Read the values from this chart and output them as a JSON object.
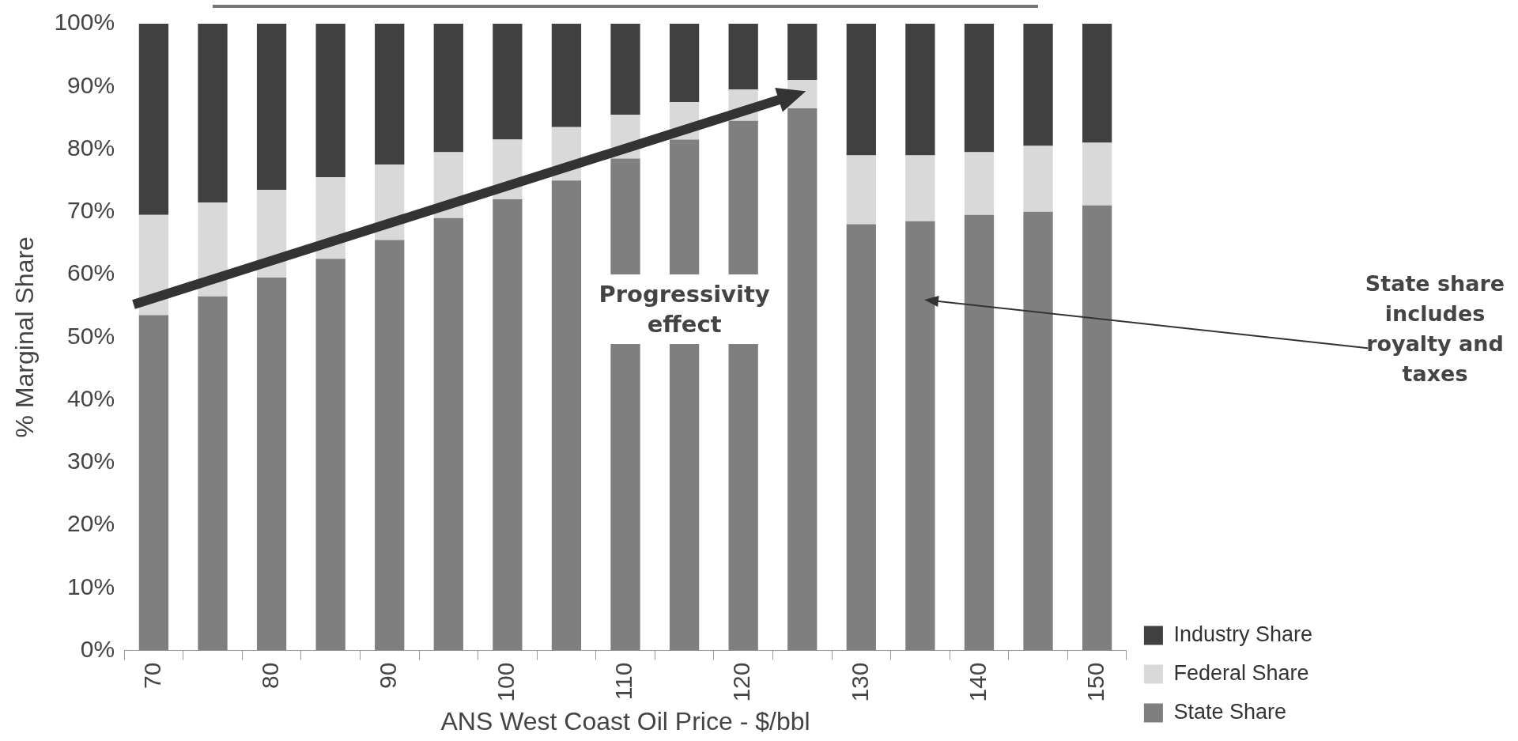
{
  "chart_data": {
    "type": "bar",
    "stacked": true,
    "xlabel": "ANS West Coast Oil Price - $/bbl",
    "ylabel": "% Marginal Share",
    "categories": [
      "70",
      null,
      "80",
      null,
      "90",
      null,
      "100",
      null,
      "110",
      null,
      "120",
      null,
      "130",
      null,
      "140",
      null,
      "150"
    ],
    "series": [
      {
        "name": "State Share",
        "color": "#7f7f7f",
        "values": [
          53.5,
          56.5,
          59.5,
          62.5,
          65.5,
          69,
          72,
          75,
          78.5,
          81.5,
          84.5,
          86.5,
          68,
          68.5,
          69.5,
          70,
          71
        ]
      },
      {
        "name": "Federal Share",
        "color": "#d9d9d9",
        "values": [
          16,
          15,
          14,
          13,
          12,
          10.5,
          9.5,
          8.5,
          7,
          6,
          5,
          4.5,
          11,
          10.5,
          10,
          10.5,
          10
        ]
      },
      {
        "name": "Industry Share",
        "color": "#404040",
        "values": [
          30.5,
          28.5,
          26.5,
          24.5,
          22.5,
          20.5,
          18.5,
          16.5,
          14.5,
          12.5,
          10.5,
          9,
          21,
          21,
          20.5,
          19.5,
          19
        ]
      }
    ],
    "ylim": [
      0,
      100
    ],
    "yticks": [
      {
        "value": 0,
        "label": "0%"
      },
      {
        "value": 10,
        "label": "10%"
      },
      {
        "value": 20,
        "label": "20%"
      },
      {
        "value": 30,
        "label": "30%"
      },
      {
        "value": 40,
        "label": "40%"
      },
      {
        "value": 50,
        "label": "50%"
      },
      {
        "value": 60,
        "label": "60%"
      },
      {
        "value": 70,
        "label": "70%"
      },
      {
        "value": 80,
        "label": "80%"
      },
      {
        "value": 90,
        "label": "90%"
      },
      {
        "value": 100,
        "label": "100%"
      }
    ],
    "grid": false,
    "legend": "bottom right",
    "annotations": [
      "Progressivity effect",
      "State share includes royalty and taxes"
    ]
  }
}
